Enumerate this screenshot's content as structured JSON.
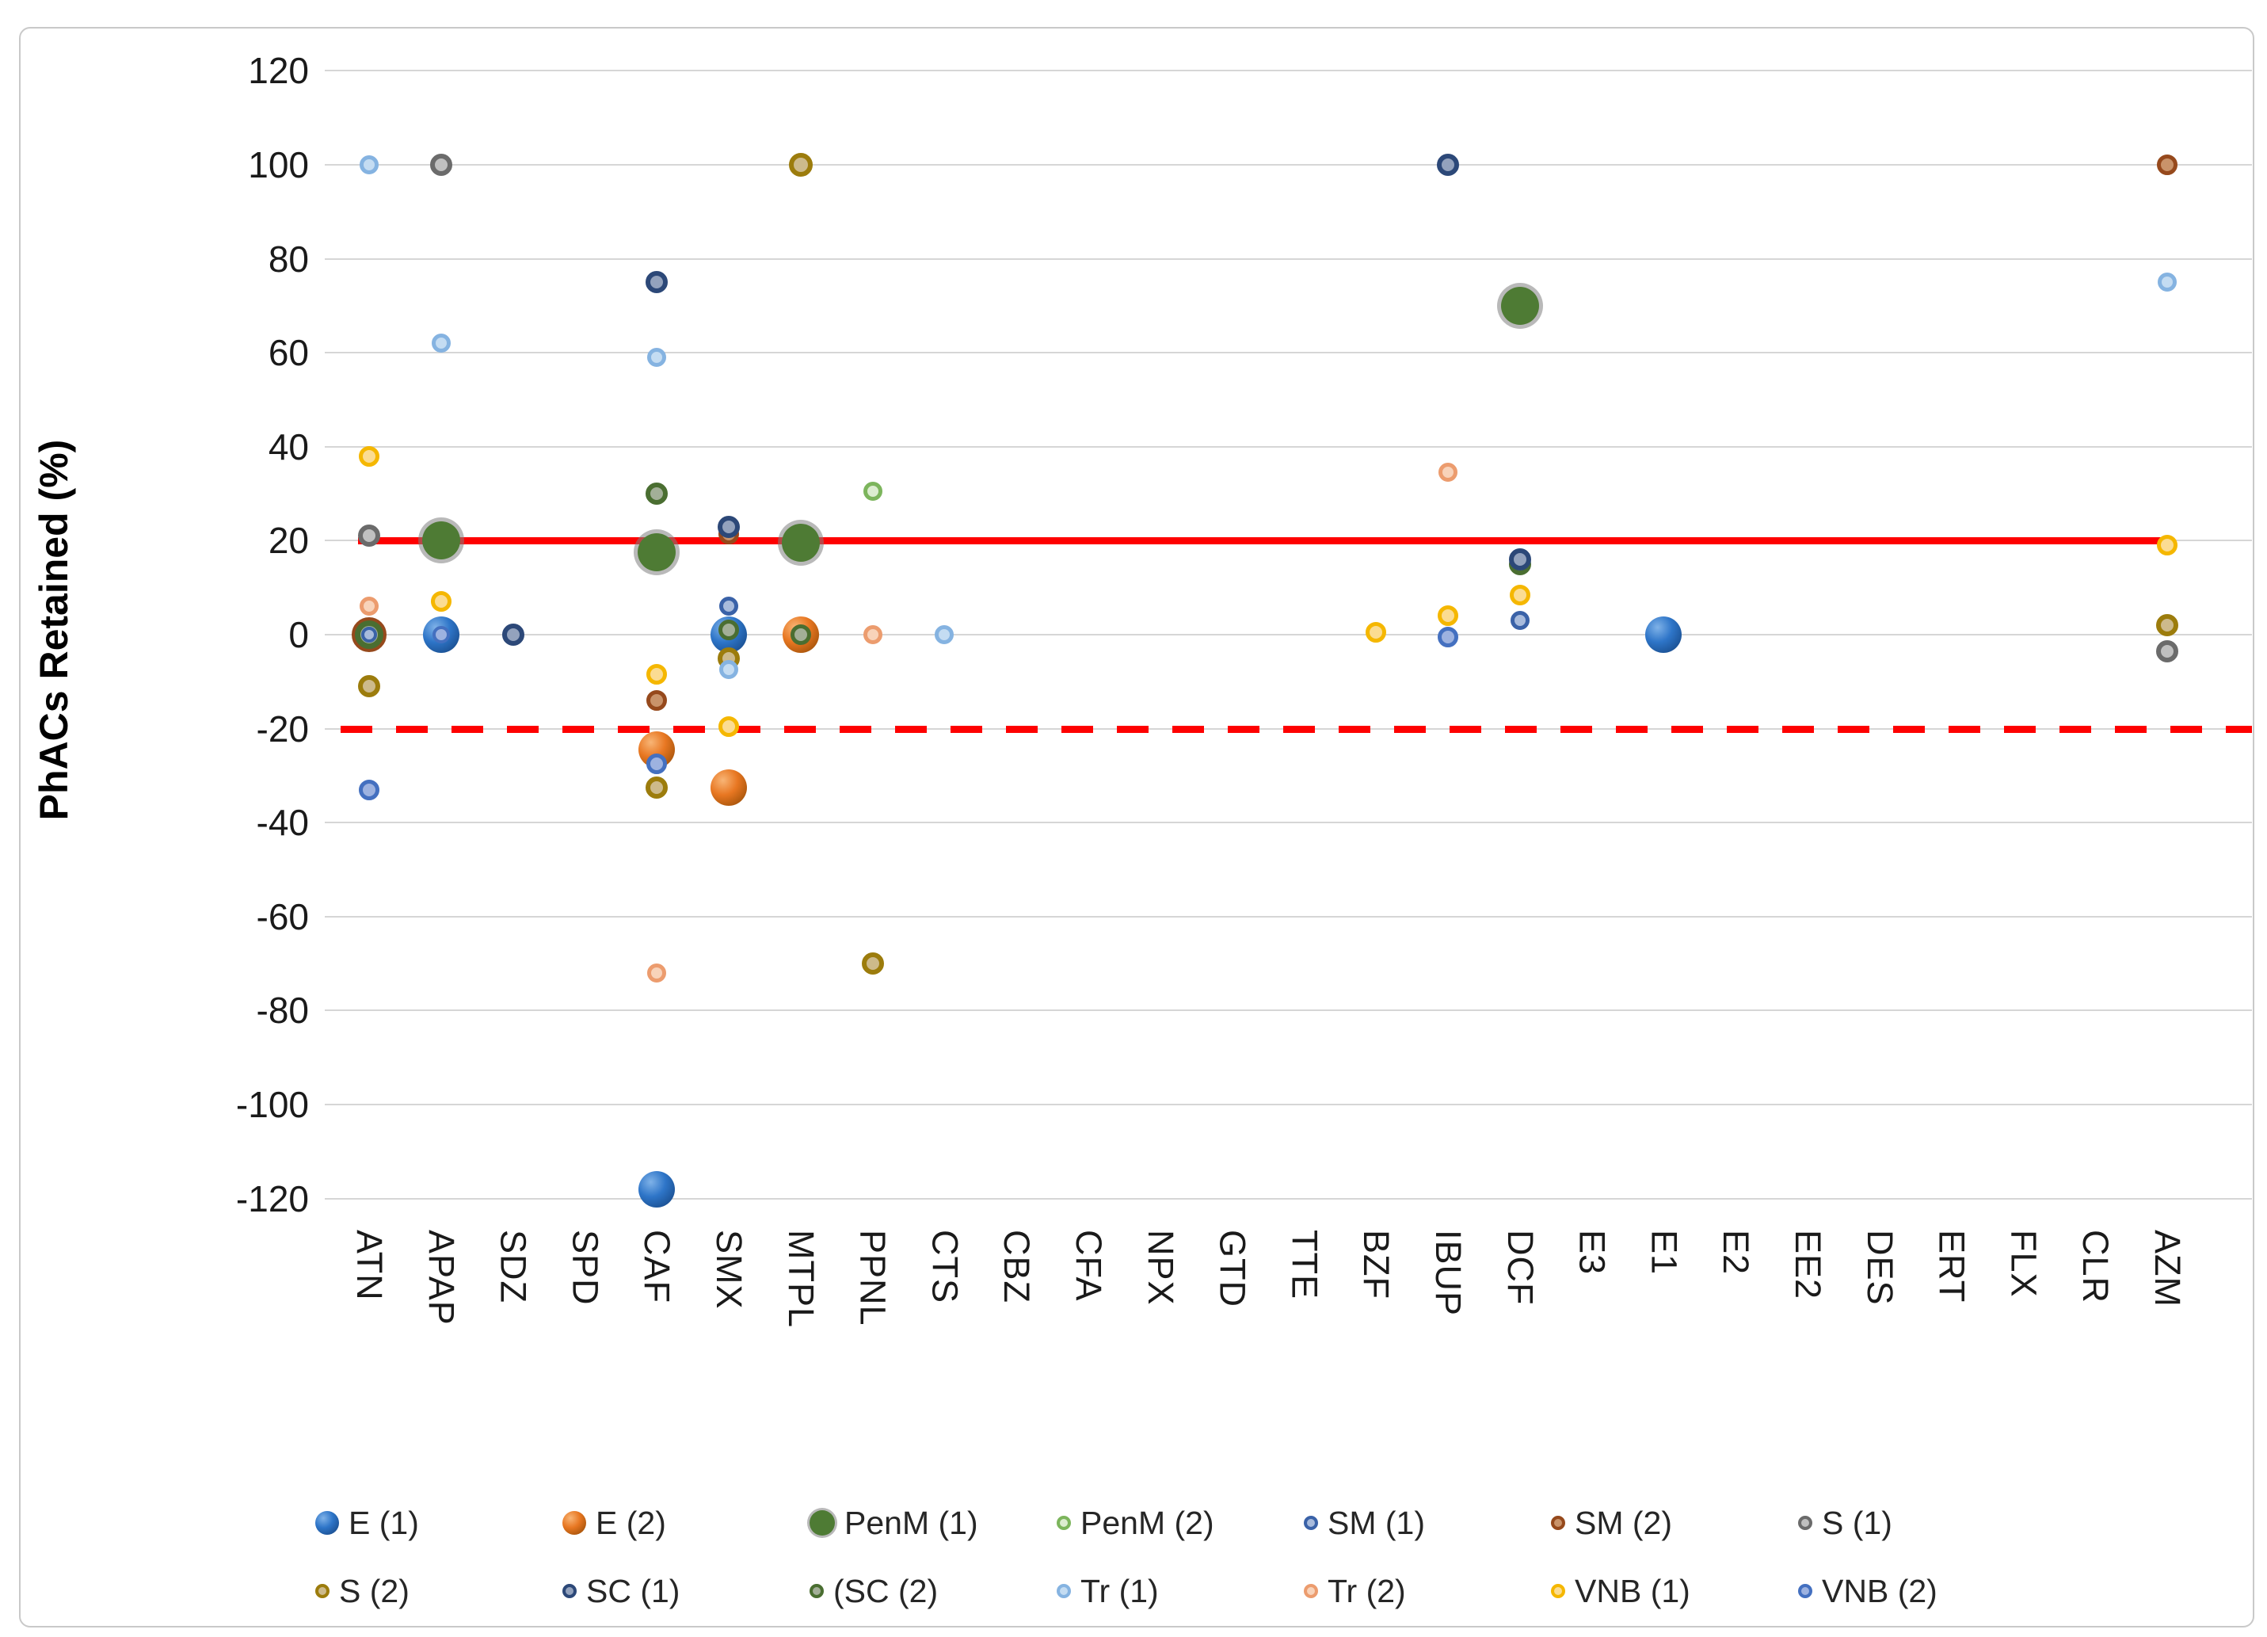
{
  "chart_data": {
    "type": "scatter",
    "title": "",
    "ylabel": "PhACs Retained (%)",
    "xlabel": "",
    "ylim": [
      -130,
      130
    ],
    "yticks": [
      120,
      100,
      80,
      60,
      40,
      20,
      0,
      -20,
      -40,
      -60,
      -80,
      -100,
      -120
    ],
    "grid": true,
    "categories": [
      "ATN",
      "APAP",
      "SDZ",
      "SPD",
      "CAF",
      "SMX",
      "MTPL",
      "PPNL",
      "CTS",
      "CBZ",
      "CFA",
      "NPX",
      "GTD",
      "TTE",
      "BZF",
      "IBUP",
      "DCF",
      "E3",
      "E1",
      "E2",
      "EE2",
      "DES",
      "ERT",
      "FLX",
      "CLR",
      "AZM"
    ],
    "reference_lines": [
      {
        "value": 20,
        "style": "solid",
        "color": "#FE0000"
      },
      {
        "value": -20,
        "style": "dashed",
        "color": "#FE0000"
      }
    ],
    "series_styles": {
      "E (1)": {
        "kind": "sphere",
        "colors": [
          "#7FB2E8",
          "#2E75C8",
          "#123F79"
        ],
        "d": 46
      },
      "E (2)": {
        "kind": "sphere",
        "colors": [
          "#F8B576",
          "#E87722",
          "#8A4500"
        ],
        "d": 46
      },
      "PenM (1)": {
        "kind": "flat",
        "fill": "#4E7B34",
        "outline": "rgba(128,128,128,0.55)",
        "d": 48
      },
      "PenM (2)": {
        "kind": "ring",
        "fill": "#DCEDD0",
        "ring": "#7CB55C",
        "d": 24
      },
      "SM (1)": {
        "kind": "ring",
        "fill": "#A8BBDC",
        "ring": "#3A62A8",
        "d": 24
      },
      "SM (2)": {
        "kind": "ring",
        "fill": "#C9936A",
        "ring": "#96491C",
        "d": 26
      },
      "S (1)": {
        "kind": "ring",
        "fill": "#C0C0C0",
        "ring": "#6B6B6B",
        "d": 28
      },
      "S (2)": {
        "kind": "ring",
        "fill": "#CDBA8B",
        "ring": "#9C7C0C",
        "d": 28
      },
      "SC (1)": {
        "kind": "ring",
        "fill": "#93A2BD",
        "ring": "#2C4878",
        "d": 28
      },
      "(SC (2)": {
        "kind": "ring",
        "fill": "#A3AF98",
        "ring": "#4A6E31",
        "d": 28
      },
      "Tr (1)": {
        "kind": "ring",
        "fill": "#C4DCF2",
        "ring": "#85B3E1",
        "d": 24
      },
      "Tr (2)": {
        "kind": "ring",
        "fill": "#F8D3BA",
        "ring": "#EC9C6E",
        "d": 24
      },
      "VNB (1)": {
        "kind": "ring",
        "fill": "#FBDC92",
        "ring": "#F5B700",
        "d": 26
      },
      "VNB (2)": {
        "kind": "ring",
        "fill": "#9DB2E0",
        "ring": "#4470C0",
        "d": 26
      }
    },
    "points": [
      {
        "category": "ATN",
        "series": "Tr (1)",
        "value": 100
      },
      {
        "category": "ATN",
        "series": "VNB (1)",
        "value": 38
      },
      {
        "category": "ATN",
        "series": "S (1)",
        "value": 21
      },
      {
        "category": "ATN",
        "series": "Tr (2)",
        "value": 6
      },
      {
        "category": "ATN",
        "series": "SM (2)",
        "value": 0,
        "d": 44
      },
      {
        "category": "ATN",
        "series": "(SC (2)",
        "value": 0,
        "d": 36
      },
      {
        "category": "ATN",
        "series": "SM (1)",
        "value": 0,
        "d": 20
      },
      {
        "category": "ATN",
        "series": "S (2)",
        "value": -11
      },
      {
        "category": "ATN",
        "series": "VNB (2)",
        "value": -33
      },
      {
        "category": "APAP",
        "series": "S (1)",
        "value": 100
      },
      {
        "category": "APAP",
        "series": "Tr (1)",
        "value": 62
      },
      {
        "category": "APAP",
        "series": "PenM (1)",
        "value": 20
      },
      {
        "category": "APAP",
        "series": "VNB (1)",
        "value": 7
      },
      {
        "category": "APAP",
        "series": "E (1)",
        "value": 0
      },
      {
        "category": "APAP",
        "series": "VNB (2)",
        "value": 0,
        "d": 22
      },
      {
        "category": "SDZ",
        "series": "SC (1)",
        "value": 0
      },
      {
        "category": "CAF",
        "series": "SC (1)",
        "value": 75
      },
      {
        "category": "CAF",
        "series": "Tr (1)",
        "value": 59
      },
      {
        "category": "CAF",
        "series": "(SC (2)",
        "value": 30
      },
      {
        "category": "CAF",
        "series": "PenM (1)",
        "value": 17.5
      },
      {
        "category": "CAF",
        "series": "VNB (1)",
        "value": -8.5
      },
      {
        "category": "CAF",
        "series": "SM (2)",
        "value": -14
      },
      {
        "category": "CAF",
        "series": "E (2)",
        "value": -24.5
      },
      {
        "category": "CAF",
        "series": "VNB (2)",
        "value": -27.5
      },
      {
        "category": "CAF",
        "series": "S (2)",
        "value": -32.5
      },
      {
        "category": "CAF",
        "series": "Tr (2)",
        "value": -72
      },
      {
        "category": "CAF",
        "series": "E (1)",
        "value": -118
      },
      {
        "category": "SMX",
        "series": "SM (2)",
        "value": 21.5
      },
      {
        "category": "SMX",
        "series": "SC (1)",
        "value": 23
      },
      {
        "category": "SMX",
        "series": "SM (1)",
        "value": 6
      },
      {
        "category": "SMX",
        "series": "E (1)",
        "value": 0
      },
      {
        "category": "SMX",
        "series": "(SC (2)",
        "value": 1,
        "d": 26
      },
      {
        "category": "SMX",
        "series": "S (2)",
        "value": -5
      },
      {
        "category": "SMX",
        "series": "Tr (1)",
        "value": -7.5
      },
      {
        "category": "SMX",
        "series": "VNB (1)",
        "value": -19.5
      },
      {
        "category": "SMX",
        "series": "E (2)",
        "value": -32.5
      },
      {
        "category": "MTPL",
        "series": "S (2)",
        "value": 100,
        "d": 30
      },
      {
        "category": "MTPL",
        "series": "PenM (1)",
        "value": 19.5
      },
      {
        "category": "MTPL",
        "series": "SM (2)",
        "value": 0,
        "d": 42
      },
      {
        "category": "MTPL",
        "series": "E (2)",
        "value": 0
      },
      {
        "category": "MTPL",
        "series": "(SC (2)",
        "value": 0,
        "d": 26
      },
      {
        "category": "PPNL",
        "series": "PenM (2)",
        "value": 30.5
      },
      {
        "category": "PPNL",
        "series": "Tr (2)",
        "value": 0
      },
      {
        "category": "PPNL",
        "series": "S (2)",
        "value": -70
      },
      {
        "category": "CTS",
        "series": "Tr (1)",
        "value": 0
      },
      {
        "category": "BZF",
        "series": "VNB (1)",
        "value": 0.5
      },
      {
        "category": "IBUP",
        "series": "SC (1)",
        "value": 100
      },
      {
        "category": "IBUP",
        "series": "Tr (2)",
        "value": 34.5
      },
      {
        "category": "IBUP",
        "series": "VNB (1)",
        "value": 4
      },
      {
        "category": "IBUP",
        "series": "VNB (2)",
        "value": -0.5
      },
      {
        "category": "DCF",
        "series": "PenM (1)",
        "value": 70
      },
      {
        "category": "DCF",
        "series": "(SC (2)",
        "value": 15
      },
      {
        "category": "DCF",
        "series": "SC (1)",
        "value": 16
      },
      {
        "category": "DCF",
        "series": "VNB (1)",
        "value": 8.5
      },
      {
        "category": "DCF",
        "series": "SM (1)",
        "value": 3
      },
      {
        "category": "E1",
        "series": "E (1)",
        "value": 0
      },
      {
        "category": "AZM",
        "series": "SM (2)",
        "value": 100
      },
      {
        "category": "AZM",
        "series": "Tr (1)",
        "value": 75
      },
      {
        "category": "AZM",
        "series": "VNB (1)",
        "value": 19
      },
      {
        "category": "AZM",
        "series": "S (2)",
        "value": 2
      },
      {
        "category": "AZM",
        "series": "S (1)",
        "value": -3.5
      }
    ],
    "legend": {
      "position": "bottom",
      "rows": [
        [
          "E (1)",
          "E (2)",
          "PenM (1)",
          "PenM (2)",
          "SM (1)",
          "SM (2)",
          "S (1)"
        ],
        [
          "S (2)",
          "SC (1)",
          "(SC (2)",
          "Tr (1)",
          "Tr (2)",
          "VNB (1)",
          "VNB (2)"
        ]
      ]
    }
  }
}
